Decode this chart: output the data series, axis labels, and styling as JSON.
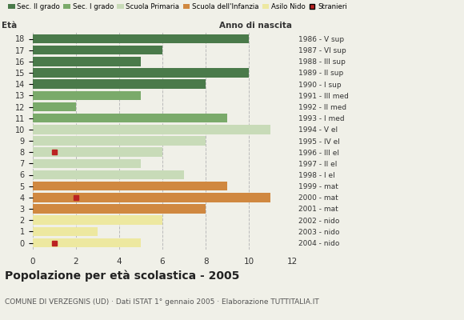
{
  "ages": [
    18,
    17,
    16,
    15,
    14,
    13,
    12,
    11,
    10,
    9,
    8,
    7,
    6,
    5,
    4,
    3,
    2,
    1,
    0
  ],
  "years": [
    "1986 - V sup",
    "1987 - VI sup",
    "1988 - III sup",
    "1989 - II sup",
    "1990 - I sup",
    "1991 - III med",
    "1992 - II med",
    "1993 - I med",
    "1994 - V el",
    "1995 - IV el",
    "1996 - III el",
    "1997 - II el",
    "1998 - I el",
    "1999 - mat",
    "2000 - mat",
    "2001 - mat",
    "2002 - nido",
    "2003 - nido",
    "2004 - nido"
  ],
  "values": [
    10,
    6,
    5,
    10,
    8,
    5,
    2,
    9,
    11,
    8,
    6,
    5,
    7,
    9,
    11,
    8,
    6,
    3,
    5
  ],
  "bar_colors": [
    "#4a7a4a",
    "#4a7a4a",
    "#4a7a4a",
    "#4a7a4a",
    "#4a7a4a",
    "#7aaa6a",
    "#7aaa6a",
    "#7aaa6a",
    "#c8dbb8",
    "#c8dbb8",
    "#c8dbb8",
    "#c8dbb8",
    "#c8dbb8",
    "#d08840",
    "#d08840",
    "#d08840",
    "#ede8a0",
    "#ede8a0",
    "#ede8a0"
  ],
  "stranieri": [
    {
      "age": 8,
      "value": 1
    },
    {
      "age": 4,
      "value": 2
    },
    {
      "age": 0,
      "value": 1
    }
  ],
  "title": "Popolazione per età scolastica - 2005",
  "subtitle": "COMUNE DI VERZEGNIS (UD) · Dati ISTAT 1° gennaio 2005 · Elaborazione TUTTITALIA.IT",
  "legend_labels": [
    "Sec. II grado",
    "Sec. I grado",
    "Scuola Primaria",
    "Scuola dell'Infanzia",
    "Asilo Nido",
    "Stranieri"
  ],
  "legend_colors": [
    "#4a7a4a",
    "#7aaa6a",
    "#c8dbb8",
    "#d08840",
    "#ede8a0",
    "#bb2222"
  ],
  "xlim": [
    0,
    12
  ],
  "xticks": [
    0,
    2,
    4,
    6,
    8,
    10,
    12
  ],
  "eta_label": "Età",
  "anno_label": "Anno di nascita",
  "bar_height": 0.82,
  "grid_color": "#bbbbbb",
  "bg_color": "#f0f0e8"
}
